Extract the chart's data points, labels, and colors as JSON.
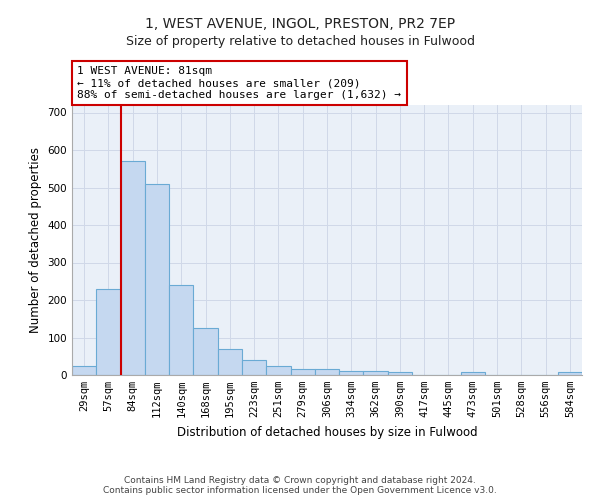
{
  "title_line1": "1, WEST AVENUE, INGOL, PRESTON, PR2 7EP",
  "title_line2": "Size of property relative to detached houses in Fulwood",
  "xlabel": "Distribution of detached houses by size in Fulwood",
  "ylabel": "Number of detached properties",
  "categories": [
    "29sqm",
    "57sqm",
    "84sqm",
    "112sqm",
    "140sqm",
    "168sqm",
    "195sqm",
    "223sqm",
    "251sqm",
    "279sqm",
    "306sqm",
    "334sqm",
    "362sqm",
    "390sqm",
    "417sqm",
    "445sqm",
    "473sqm",
    "501sqm",
    "528sqm",
    "556sqm",
    "584sqm"
  ],
  "values": [
    25,
    230,
    570,
    510,
    240,
    125,
    70,
    40,
    25,
    15,
    15,
    10,
    10,
    8,
    0,
    0,
    8,
    0,
    0,
    0,
    7
  ],
  "bar_color": "#c5d8f0",
  "bar_edge_color": "#6aaad4",
  "grid_color": "#d0d8e8",
  "background_color": "#eaf0f8",
  "annotation_box_text": "1 WEST AVENUE: 81sqm\n← 11% of detached houses are smaller (209)\n88% of semi-detached houses are larger (1,632) →",
  "annotation_box_color": "#ffffff",
  "annotation_box_edge_color": "#cc0000",
  "vline_color": "#cc0000",
  "ylim": [
    0,
    720
  ],
  "yticks": [
    0,
    100,
    200,
    300,
    400,
    500,
    600,
    700
  ],
  "footer_text": "Contains HM Land Registry data © Crown copyright and database right 2024.\nContains public sector information licensed under the Open Government Licence v3.0.",
  "title_fontsize": 10,
  "subtitle_fontsize": 9,
  "axis_label_fontsize": 8.5,
  "tick_fontsize": 7.5,
  "annotation_fontsize": 8,
  "footer_fontsize": 6.5
}
